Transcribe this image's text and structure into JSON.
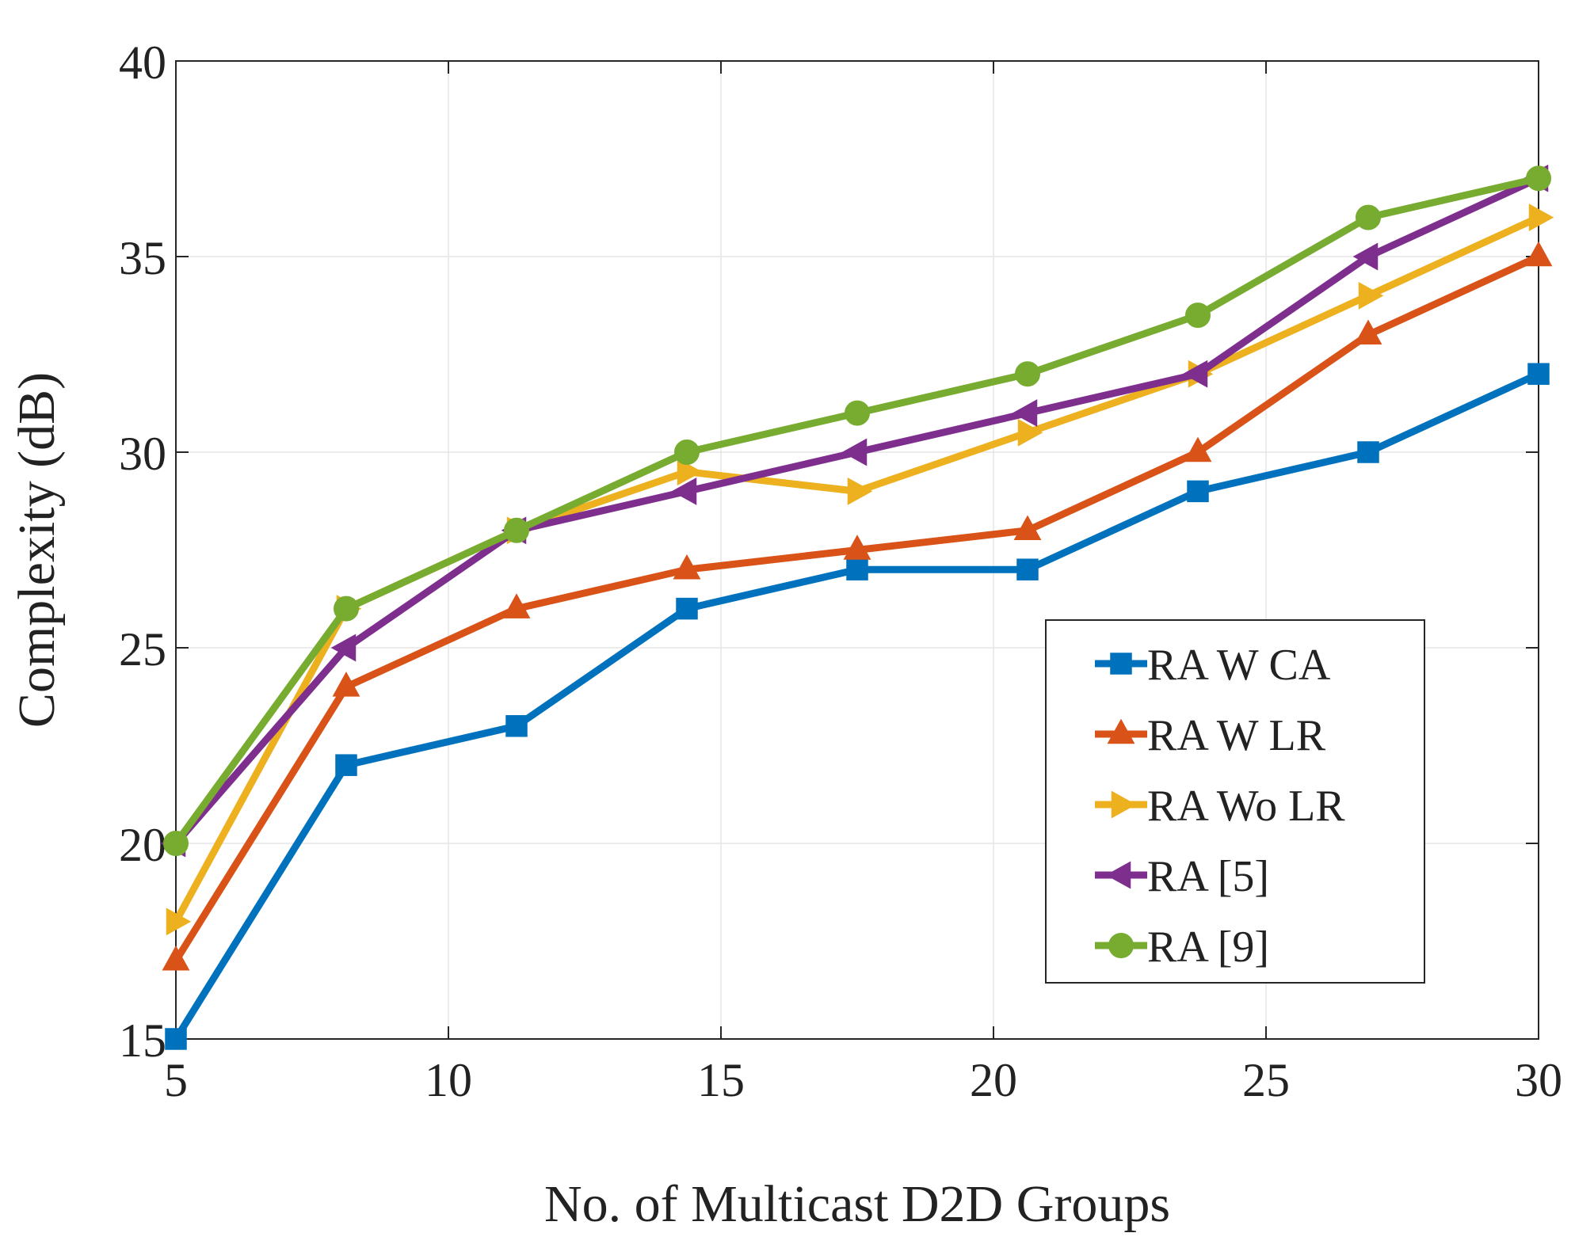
{
  "chart_data": {
    "type": "line",
    "title": "",
    "xlabel": "No. of Multicast D2D Groups",
    "ylabel": "Complexity (dB)",
    "xlim": [
      5,
      30
    ],
    "ylim": [
      15,
      40
    ],
    "xticks": [
      5,
      10,
      15,
      20,
      25,
      30
    ],
    "yticks": [
      15,
      20,
      25,
      30,
      35,
      40
    ],
    "x": [
      5,
      8.125,
      11.25,
      14.375,
      17.5,
      20.625,
      23.75,
      26.875,
      30
    ],
    "grid": true,
    "legend_position": "lower-right",
    "series": [
      {
        "name": "RA W CA",
        "color": "#0072BD",
        "marker": "square",
        "values": [
          15,
          22,
          23,
          26,
          27,
          27,
          29,
          30,
          32
        ]
      },
      {
        "name": "RA W LR",
        "color": "#D95319",
        "marker": "triangle-up",
        "values": [
          17,
          24,
          26,
          27,
          27.5,
          28,
          30,
          33,
          35
        ]
      },
      {
        "name": "RA Wo LR",
        "color": "#EDB120",
        "marker": "triangle-right",
        "values": [
          18,
          26,
          28,
          29.5,
          29,
          30.5,
          32,
          34,
          36
        ]
      },
      {
        "name": "RA [5]",
        "color": "#7E2F8E",
        "marker": "triangle-left",
        "values": [
          20,
          25,
          28,
          29,
          30,
          31,
          32,
          35,
          37
        ]
      },
      {
        "name": "RA [9]",
        "color": "#77AC30",
        "marker": "circle",
        "values": [
          20,
          26,
          28,
          30,
          31,
          32,
          33.5,
          36,
          37
        ]
      }
    ]
  }
}
